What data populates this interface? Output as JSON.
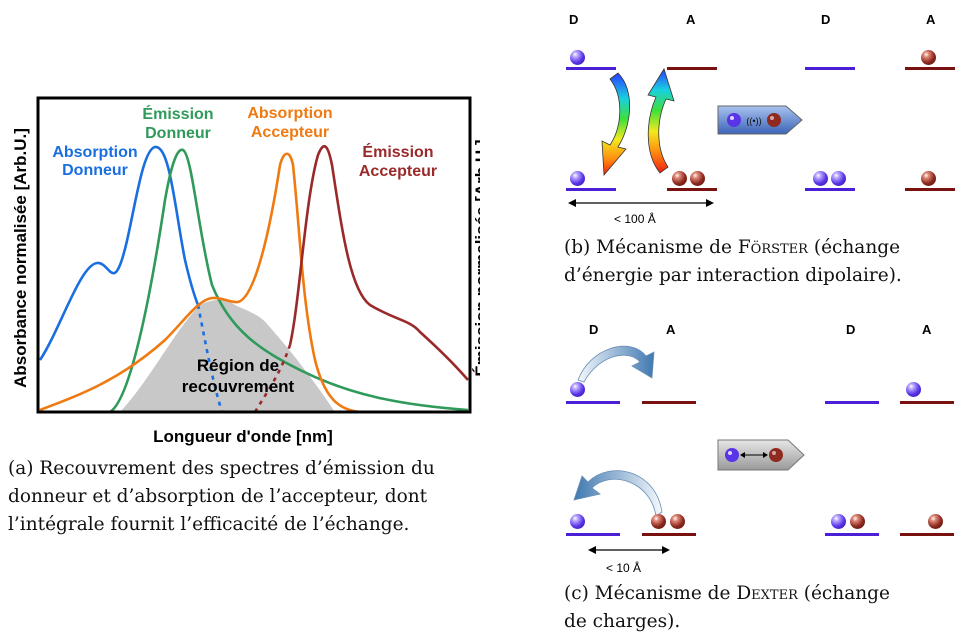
{
  "panel_a": {
    "y_label_left": "Absorbance normalisée [Arb.U.]",
    "y_label_right": "Émission normalisée [Arb.U.]",
    "x_label": "Longueur d'onde [nm]",
    "series": [
      {
        "line1": "Absorption",
        "line2": "Donneur",
        "color": "#1a6fe0"
      },
      {
        "line1": "Émission",
        "line2": "Donneur",
        "color": "#2f9a5a"
      },
      {
        "line1": "Absorption",
        "line2": "Accepteur",
        "color": "#f07a12"
      },
      {
        "line1": "Émission",
        "line2": "Accepteur",
        "color": "#9a2a2a"
      }
    ],
    "overlap_line1": "Région de",
    "overlap_line2": "recouvrement",
    "caption": {
      "line1": "(a) Recouvrement des spectres d’émission du",
      "line2": "donneur et d’absorption de l’accepteur, dont",
      "line3": "l’intégrale fournit l’efficacité de l’échange."
    }
  },
  "panel_b": {
    "label_d": "D",
    "label_a": "A",
    "distance": "< 100 Å",
    "caption": {
      "prefix": "(b) Mécanisme de",
      "name": "Förster",
      "suffix": "(échange",
      "line2": "d’énergie par interaction dipolaire)."
    }
  },
  "panel_c": {
    "label_d": "D",
    "label_a": "A",
    "distance": "< 10 Å",
    "caption": {
      "prefix": "(c) Mécanisme de",
      "name": "Dexter",
      "suffix": "(échange",
      "line2": "de charges)."
    }
  },
  "colors": {
    "donor_level": "#4b1fd6",
    "acceptor_level": "#7a1111",
    "overlap_fill": "#c8c8c8"
  }
}
